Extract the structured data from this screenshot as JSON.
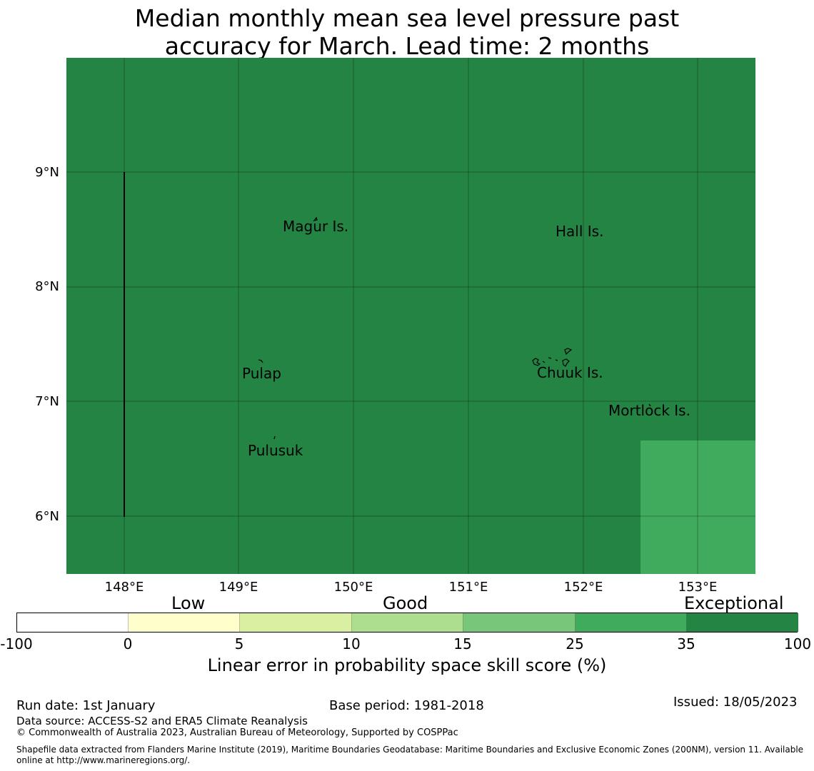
{
  "title": {
    "line1": "Median monthly mean sea level pressure past",
    "line2": "accuracy for March. Lead time: 2 months"
  },
  "map": {
    "lat_ticks": [
      "9°N",
      "8°N",
      "7°N",
      "6°N"
    ],
    "lon_ticks": [
      "148°E",
      "149°E",
      "150°E",
      "151°E",
      "152°E",
      "153°E"
    ],
    "lon_range": [
      147.5,
      153.5
    ],
    "lat_range": [
      5.5,
      10.0
    ],
    "colors": {
      "exceptional": "#238443",
      "high": "#41ab5d"
    },
    "places": [
      "Magur Is.",
      "Hall Is.",
      "Pulap",
      "Chuuk Is.",
      "Mortlock Is.",
      "Pulusuk"
    ]
  },
  "colorbar": {
    "categories": [
      "Low",
      "Good",
      "Exceptional"
    ],
    "ticks": [
      "-100",
      "0",
      "5",
      "10",
      "15",
      "25",
      "35",
      "100"
    ],
    "colors": [
      "#ffffff",
      "#ffffcc",
      "#d9f0a3",
      "#addd8e",
      "#78c679",
      "#41ab5d",
      "#238443"
    ],
    "label": "Linear error in probability space skill score (%)"
  },
  "footer": {
    "run_date": "Run date: 1st January",
    "base_period": "Base period: 1981-2018",
    "issued": "Issued: 18/05/2023",
    "data_source": "Data source: ACCESS-S2 and ERA5 Climate Reanalysis",
    "copyright": "© Commonwealth of Australia 2023, Australian Bureau of Meteorology, Supported by COSPPac",
    "shapefile_line1": "Shapefile data extracted from Flanders Marine Institute (2019), Maritime Boundaries Geodatabase: Maritime Boundaries and Exclusive Economic Zones (200NM), version 11. Available",
    "shapefile_line2": "online at http://www.marineregions.org/."
  }
}
